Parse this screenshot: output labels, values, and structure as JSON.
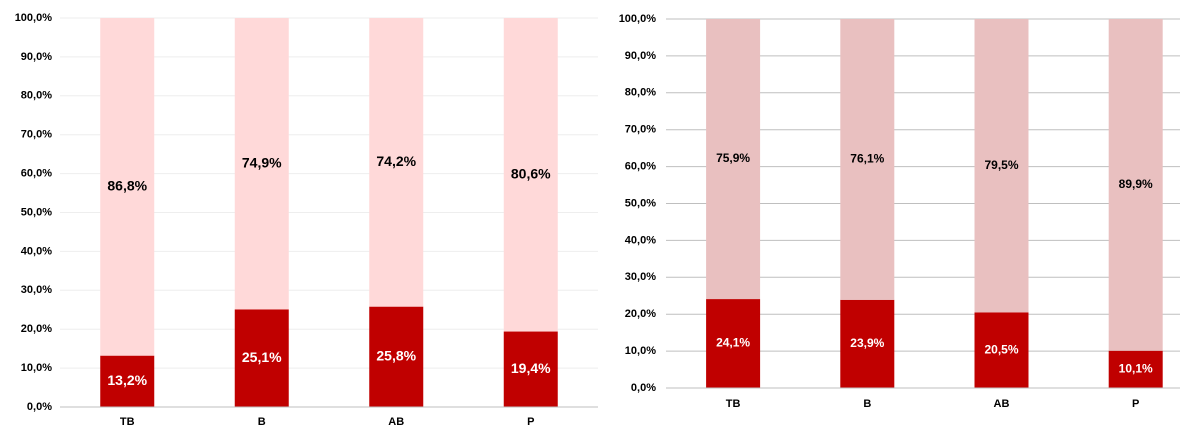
{
  "chart_data": [
    {
      "type": "stacked_bar",
      "categories": [
        "TB",
        "B",
        "AB",
        "P"
      ],
      "series": [
        {
          "color": "#c00000",
          "values": [
            13.2,
            25.1,
            25.8,
            19.4
          ],
          "value_labels": [
            "13,2%",
            "25,1%",
            "25,8%",
            "19,4%"
          ]
        },
        {
          "color": "#ffd9d9",
          "values": [
            86.8,
            74.9,
            74.2,
            80.6
          ],
          "value_labels": [
            "86,8%",
            "74,9%",
            "74,2%",
            "80,6%"
          ]
        }
      ],
      "ylim": [
        0,
        100
      ],
      "yticks": [
        {
          "value": 0,
          "label": "0,0%"
        },
        {
          "value": 10,
          "label": "10,0%"
        },
        {
          "value": 20,
          "label": "20,0%"
        },
        {
          "value": 30,
          "label": "30,0%"
        },
        {
          "value": 40,
          "label": "40,0%"
        },
        {
          "value": 50,
          "label": "50,0%"
        },
        {
          "value": 60,
          "label": "60,0%"
        },
        {
          "value": 70,
          "label": "70,0%"
        },
        {
          "value": 80,
          "label": "80,0%"
        },
        {
          "value": 90,
          "label": "90,0%"
        },
        {
          "value": 100,
          "label": "100,0%"
        }
      ],
      "grid": true
    },
    {
      "type": "stacked_bar",
      "categories": [
        "TB",
        "B",
        "AB",
        "P"
      ],
      "series": [
        {
          "color": "#c00000",
          "values": [
            24.1,
            23.9,
            20.5,
            10.1
          ],
          "value_labels": [
            "24,1%",
            "23,9%",
            "20,5%",
            "10,1%"
          ]
        },
        {
          "color": "#e9c0c0",
          "values": [
            75.9,
            76.1,
            79.5,
            89.9
          ],
          "value_labels": [
            "75,9%",
            "76,1%",
            "79,5%",
            "89,9%"
          ]
        }
      ],
      "ylim": [
        0,
        100
      ],
      "yticks": [
        {
          "value": 0,
          "label": "0,0%"
        },
        {
          "value": 10,
          "label": "10,0%"
        },
        {
          "value": 20,
          "label": "20,0%"
        },
        {
          "value": 30,
          "label": "30,0%"
        },
        {
          "value": 40,
          "label": "40,0%"
        },
        {
          "value": 50,
          "label": "50,0%"
        },
        {
          "value": 60,
          "label": "60,0%"
        },
        {
          "value": 70,
          "label": "70,0%"
        },
        {
          "value": 80,
          "label": "80,0%"
        },
        {
          "value": 90,
          "label": "90,0%"
        },
        {
          "value": 100,
          "label": "100,0%"
        }
      ],
      "grid": true
    }
  ]
}
